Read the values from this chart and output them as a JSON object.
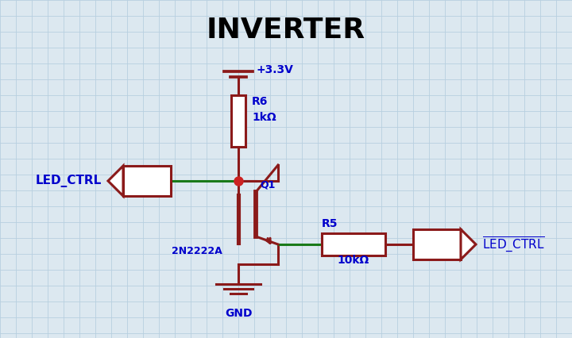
{
  "title": "INVERTER",
  "bg_color": "#dce8f0",
  "grid_color": "#b8cfe0",
  "dark_red": "#8b1a1a",
  "green": "#1a7a1a",
  "blue": "#0000cc",
  "vcc_label": "+3.3V",
  "gnd_label": "GND",
  "transistor_label": "Q1",
  "transistor_name": "2N2222A",
  "r_collector_label": "R6",
  "r_collector_value": "1kΩ",
  "r_output_label": "R5",
  "r_output_value": "10kΩ",
  "input_label": "LED_CTRL",
  "output_label": "LED_CTRL",
  "title_fontsize": 26,
  "label_fontsize": 11,
  "component_fontsize": 10
}
